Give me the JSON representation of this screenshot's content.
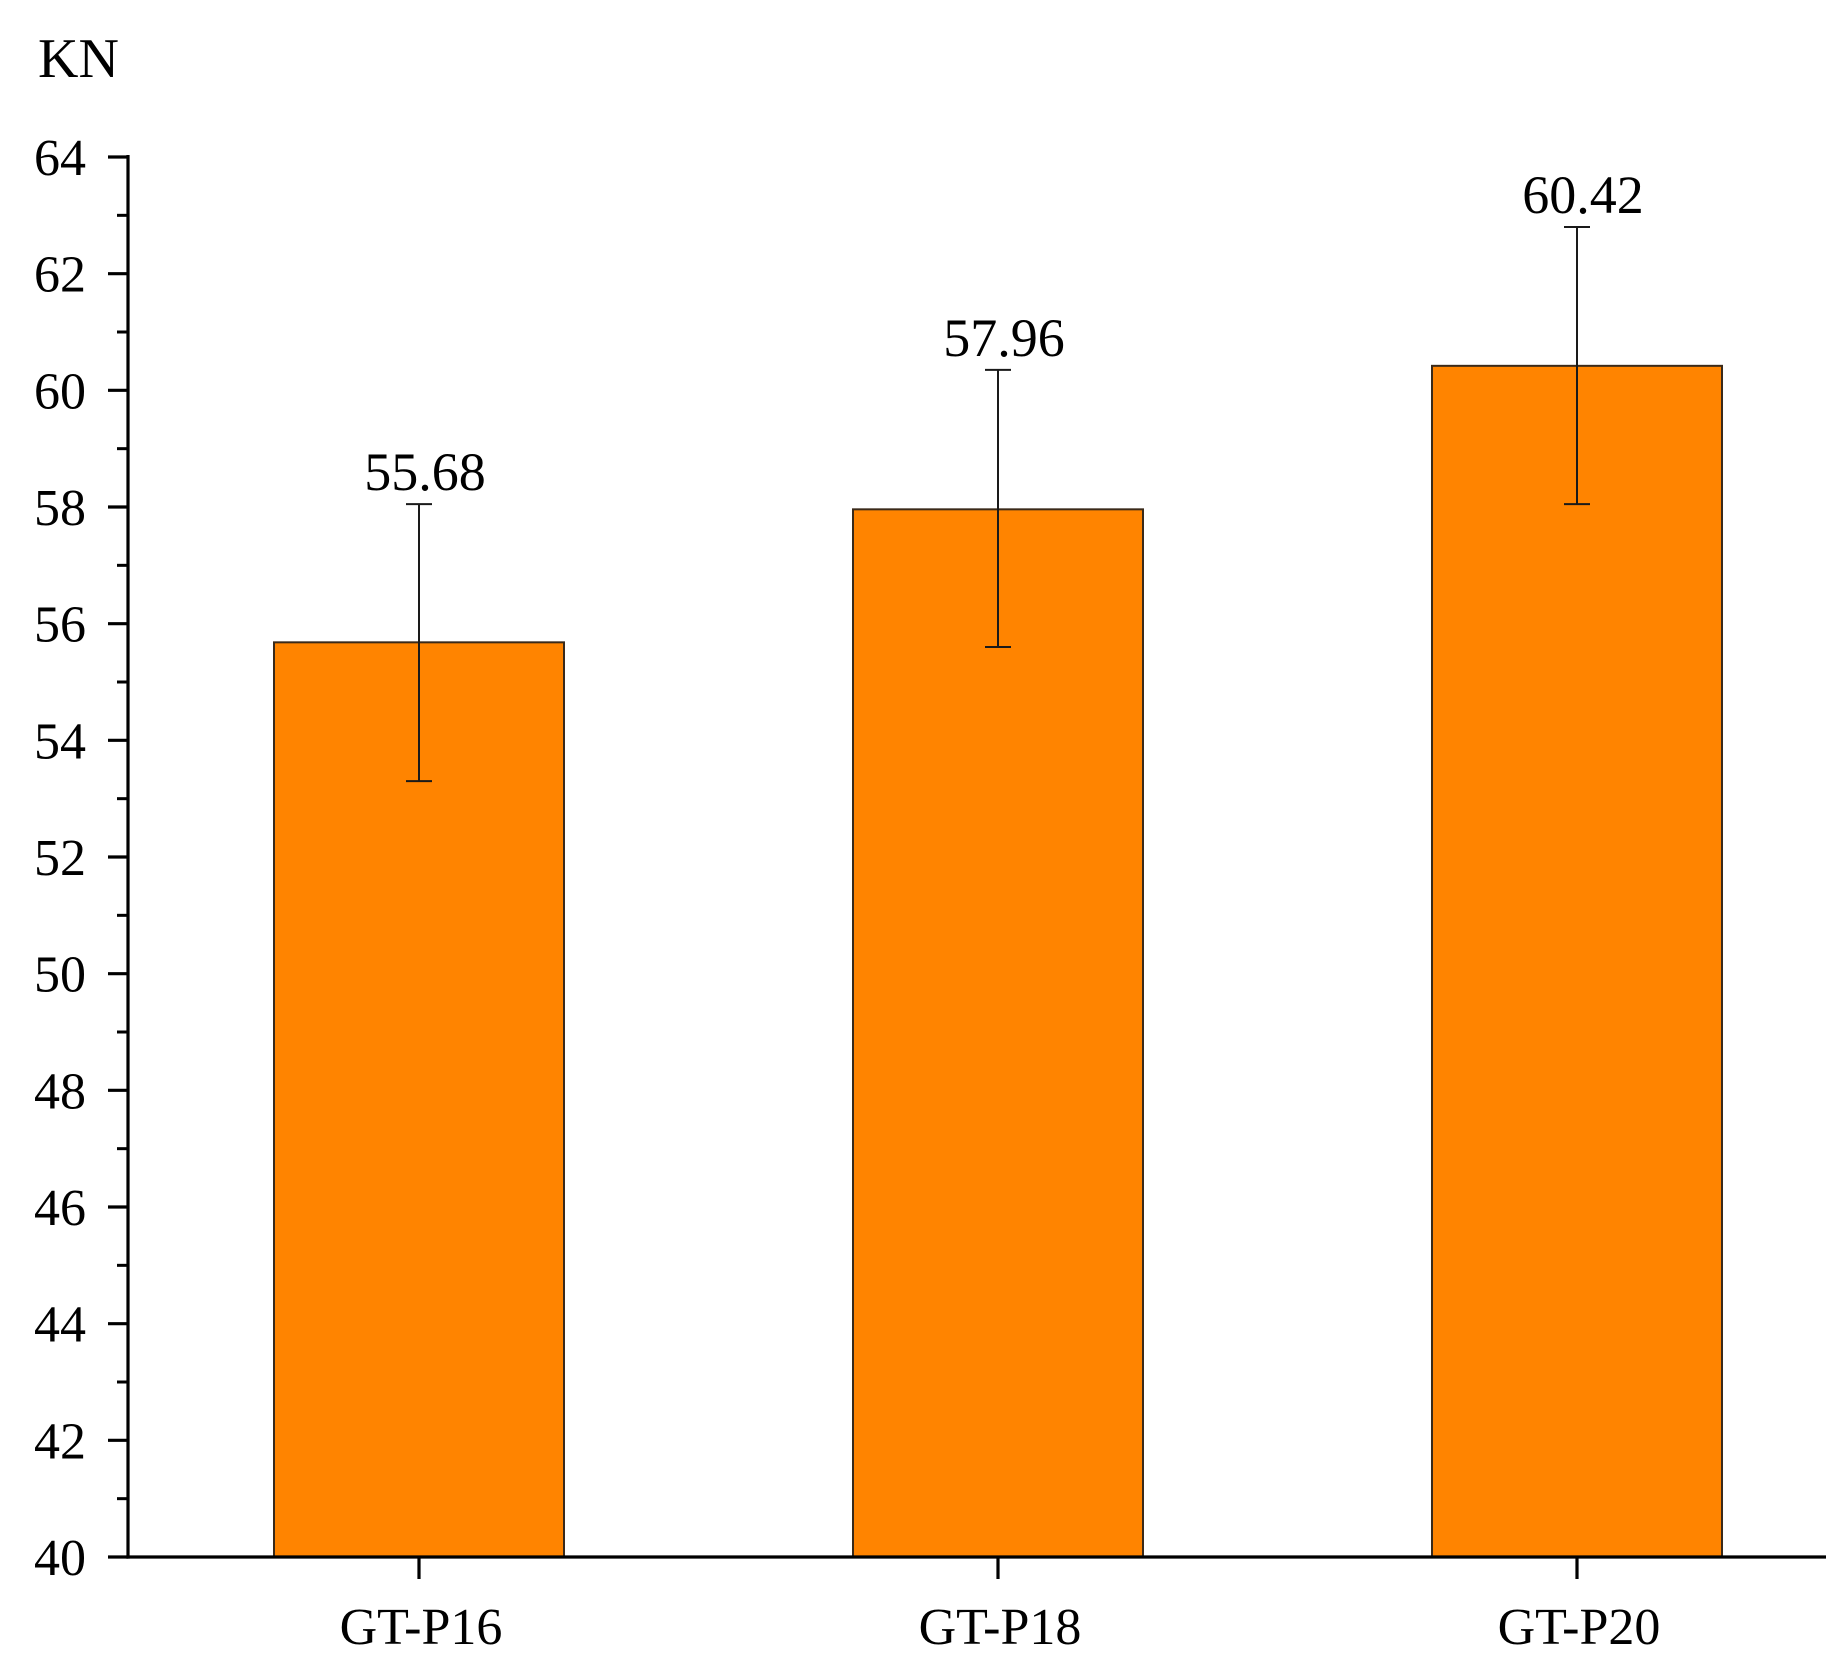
{
  "chart_data": {
    "type": "bar",
    "title": "",
    "unit_label": "KN",
    "xlabel": "",
    "ylabel": "KN",
    "categories": [
      "GT-P16",
      "GT-P18",
      "GT-P20"
    ],
    "values": [
      55.68,
      57.96,
      60.42
    ],
    "value_labels": [
      "55.68",
      "57.96",
      "60.42"
    ],
    "error_upper": [
      58.05,
      60.35,
      62.8
    ],
    "error_lower": [
      53.3,
      55.6,
      58.05
    ],
    "ylim": [
      40,
      64
    ],
    "y_major_ticks": [
      40,
      42,
      44,
      46,
      48,
      50,
      52,
      54,
      56,
      58,
      60,
      62,
      64
    ],
    "y_minor_step": 1,
    "grid": false,
    "legend": "none",
    "colors": {
      "bar_fill": "#FF8400",
      "bar_edge": "#3a2a1a",
      "axis": "#000000"
    }
  }
}
